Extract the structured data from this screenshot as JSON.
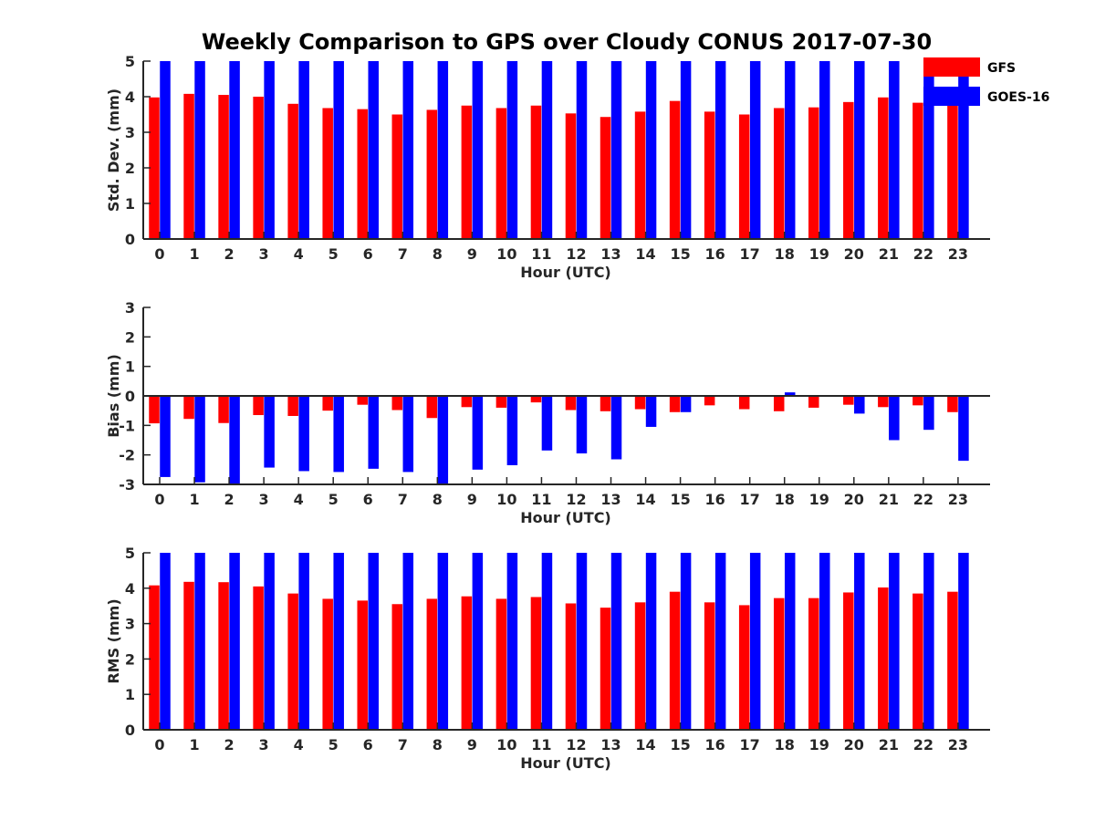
{
  "figure": {
    "title": "Weekly Comparison to GPS over Cloudy CONUS 2017-07-30",
    "legend": {
      "placement": "top-right",
      "items": [
        {
          "label": "GFS",
          "color": "#ff0000"
        },
        {
          "label": "GOES-16",
          "color": "#0000ff"
        }
      ]
    }
  },
  "chart_data": [
    {
      "type": "bar",
      "ylabel": "Std. Dev. (mm)",
      "xlabel": "Hour (UTC)",
      "ylim": [
        0,
        5
      ],
      "yticks": [
        0,
        1,
        2,
        3,
        4,
        5
      ],
      "categories": [
        "0",
        "1",
        "2",
        "3",
        "4",
        "5",
        "6",
        "7",
        "8",
        "9",
        "10",
        "11",
        "12",
        "13",
        "14",
        "15",
        "16",
        "17",
        "18",
        "19",
        "20",
        "21",
        "22",
        "23"
      ],
      "series": [
        {
          "name": "GFS",
          "color": "#ff0000",
          "values": [
            3.98,
            4.08,
            4.05,
            4.0,
            3.8,
            3.68,
            3.65,
            3.5,
            3.63,
            3.75,
            3.68,
            3.75,
            3.53,
            3.43,
            3.58,
            3.88,
            3.58,
            3.5,
            3.68,
            3.7,
            3.85,
            3.98,
            3.83,
            3.78
          ]
        },
        {
          "name": "GOES-16",
          "color": "#0000ff",
          "values": [
            5,
            5,
            5,
            5,
            5,
            5,
            5,
            5,
            5,
            5,
            5,
            5,
            5,
            5,
            5,
            5,
            5,
            5,
            5,
            5,
            5,
            5,
            5,
            5
          ]
        }
      ]
    },
    {
      "type": "bar",
      "ylabel": "Bias (mm)",
      "xlabel": "Hour (UTC)",
      "ylim": [
        -3,
        3
      ],
      "yticks": [
        -3,
        -2,
        -1,
        0,
        1,
        2,
        3
      ],
      "categories": [
        "0",
        "1",
        "2",
        "3",
        "4",
        "5",
        "6",
        "7",
        "8",
        "9",
        "10",
        "11",
        "12",
        "13",
        "14",
        "15",
        "16",
        "17",
        "18",
        "19",
        "20",
        "21",
        "22",
        "23"
      ],
      "series": [
        {
          "name": "GFS",
          "color": "#ff0000",
          "values": [
            -0.93,
            -0.78,
            -0.92,
            -0.65,
            -0.68,
            -0.5,
            -0.3,
            -0.48,
            -0.75,
            -0.38,
            -0.4,
            -0.22,
            -0.48,
            -0.52,
            -0.45,
            -0.55,
            -0.32,
            -0.45,
            -0.52,
            -0.4,
            -0.3,
            -0.38,
            -0.32,
            -0.55
          ]
        },
        {
          "name": "GOES-16",
          "color": "#0000ff",
          "values": [
            -2.75,
            -2.93,
            -3.0,
            -2.43,
            -2.55,
            -2.58,
            -2.47,
            -2.58,
            -3.0,
            -2.5,
            -2.35,
            -1.85,
            -1.95,
            -2.15,
            -1.05,
            -0.55,
            0,
            0.03,
            0.12,
            -0.02,
            -0.6,
            -1.5,
            -1.15,
            -2.2
          ]
        }
      ]
    },
    {
      "type": "bar",
      "ylabel": "RMS (mm)",
      "xlabel": "Hour (UTC)",
      "ylim": [
        0,
        5
      ],
      "yticks": [
        0,
        1,
        2,
        3,
        4,
        5
      ],
      "categories": [
        "0",
        "1",
        "2",
        "3",
        "4",
        "5",
        "6",
        "7",
        "8",
        "9",
        "10",
        "11",
        "12",
        "13",
        "14",
        "15",
        "16",
        "17",
        "18",
        "19",
        "20",
        "21",
        "22",
        "23"
      ],
      "series": [
        {
          "name": "GFS",
          "color": "#ff0000",
          "values": [
            4.08,
            4.18,
            4.17,
            4.05,
            3.85,
            3.7,
            3.65,
            3.55,
            3.7,
            3.77,
            3.7,
            3.75,
            3.57,
            3.45,
            3.6,
            3.9,
            3.6,
            3.52,
            3.72,
            3.72,
            3.88,
            4.02,
            3.85,
            3.9
          ]
        },
        {
          "name": "GOES-16",
          "color": "#0000ff",
          "values": [
            5,
            5,
            5,
            5,
            5,
            5,
            5,
            5,
            5,
            5,
            5,
            5,
            5,
            5,
            5,
            5,
            5,
            5,
            5,
            5,
            5,
            5,
            5,
            5
          ]
        }
      ]
    }
  ]
}
